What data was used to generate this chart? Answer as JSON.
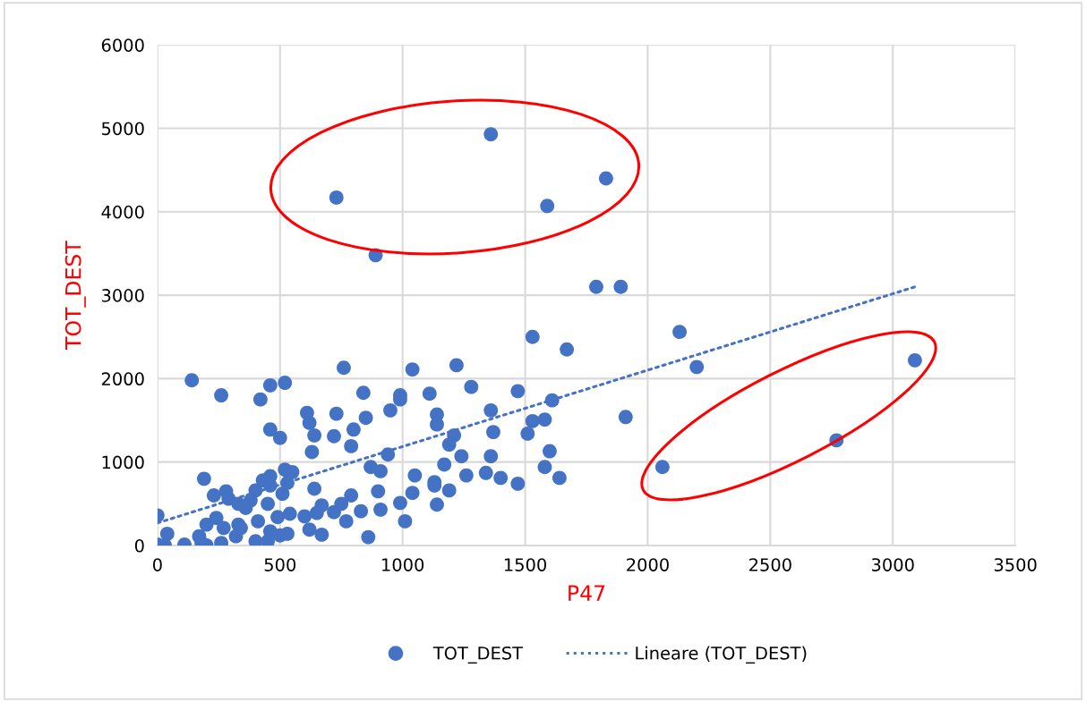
{
  "chart_data": {
    "type": "scatter",
    "xlabel": "P47",
    "ylabel": "TOT_DEST",
    "xlim": [
      0,
      3500
    ],
    "xticks": [
      0,
      500,
      1000,
      1500,
      2000,
      2500,
      3000,
      3500
    ],
    "ylim": [
      0,
      6000
    ],
    "yticks": [
      0,
      1000,
      2000,
      3000,
      4000,
      5000,
      6000
    ],
    "grid": true,
    "legend": "bottom",
    "marker": "circle",
    "series": [
      {
        "name": "TOT_DEST",
        "color": "#4472c4",
        "x": [
          0,
          40,
          0,
          30,
          110,
          260,
          200,
          170,
          200,
          240,
          270,
          230,
          280,
          290,
          330,
          360,
          400,
          380,
          450,
          430,
          460,
          460,
          510,
          520,
          550,
          530,
          640,
          330,
          340,
          320,
          410,
          490,
          540,
          600,
          650,
          670,
          720,
          750,
          790,
          830,
          770,
          620,
          670,
          860,
          400,
          450,
          460,
          500,
          530,
          180,
          140,
          260,
          420,
          460,
          520,
          760,
          840,
          610,
          620,
          640,
          630,
          730,
          720,
          800,
          790,
          460,
          500,
          850,
          190,
          1040,
          1220,
          990,
          990,
          1110,
          1280,
          1470,
          950,
          1140,
          1140,
          1360,
          1370,
          1530,
          1580,
          1510,
          1610,
          1210,
          1190,
          940,
          1240,
          1360,
          1600,
          870,
          910,
          1170,
          1050,
          1260,
          1340,
          1400,
          1470,
          1580,
          1640,
          1130,
          1130,
          900,
          1040,
          1190,
          990,
          1140,
          910,
          1010,
          1670,
          1530,
          1790,
          1890,
          2130,
          2200,
          1910,
          2060,
          2770,
          3090,
          730,
          890,
          1360,
          1590,
          1830
        ],
        "values": [
          360,
          140,
          10,
          0,
          10,
          30,
          0,
          110,
          250,
          330,
          210,
          600,
          650,
          560,
          500,
          450,
          660,
          540,
          500,
          780,
          830,
          720,
          620,
          910,
          880,
          750,
          680,
          250,
          210,
          110,
          290,
          340,
          380,
          350,
          390,
          480,
          400,
          500,
          600,
          410,
          290,
          190,
          130,
          100,
          50,
          50,
          170,
          120,
          140,
          30,
          1980,
          1800,
          1750,
          1920,
          1950,
          2130,
          1830,
          1590,
          1470,
          1320,
          1120,
          1580,
          1310,
          1390,
          1190,
          1390,
          1290,
          1530,
          800,
          2110,
          2160,
          1800,
          1750,
          1820,
          1900,
          1850,
          1620,
          1570,
          1450,
          1620,
          1360,
          1490,
          1510,
          1340,
          1740,
          1320,
          1210,
          1090,
          1070,
          1070,
          1130,
          940,
          890,
          970,
          840,
          840,
          870,
          810,
          740,
          940,
          810,
          760,
          720,
          650,
          630,
          660,
          510,
          490,
          430,
          290,
          2350,
          2500,
          3100,
          3100,
          2560,
          2140,
          1540,
          940,
          1260,
          2220,
          4170,
          3480,
          4930,
          4070,
          4400
        ]
      },
      {
        "name": "Lineare (TOT_DEST)",
        "type": "line",
        "color": "#4472c4",
        "line_style": "dotted",
        "marker": "none",
        "x": [
          0,
          3090
        ],
        "values": [
          270,
          3100
        ]
      }
    ]
  }
}
